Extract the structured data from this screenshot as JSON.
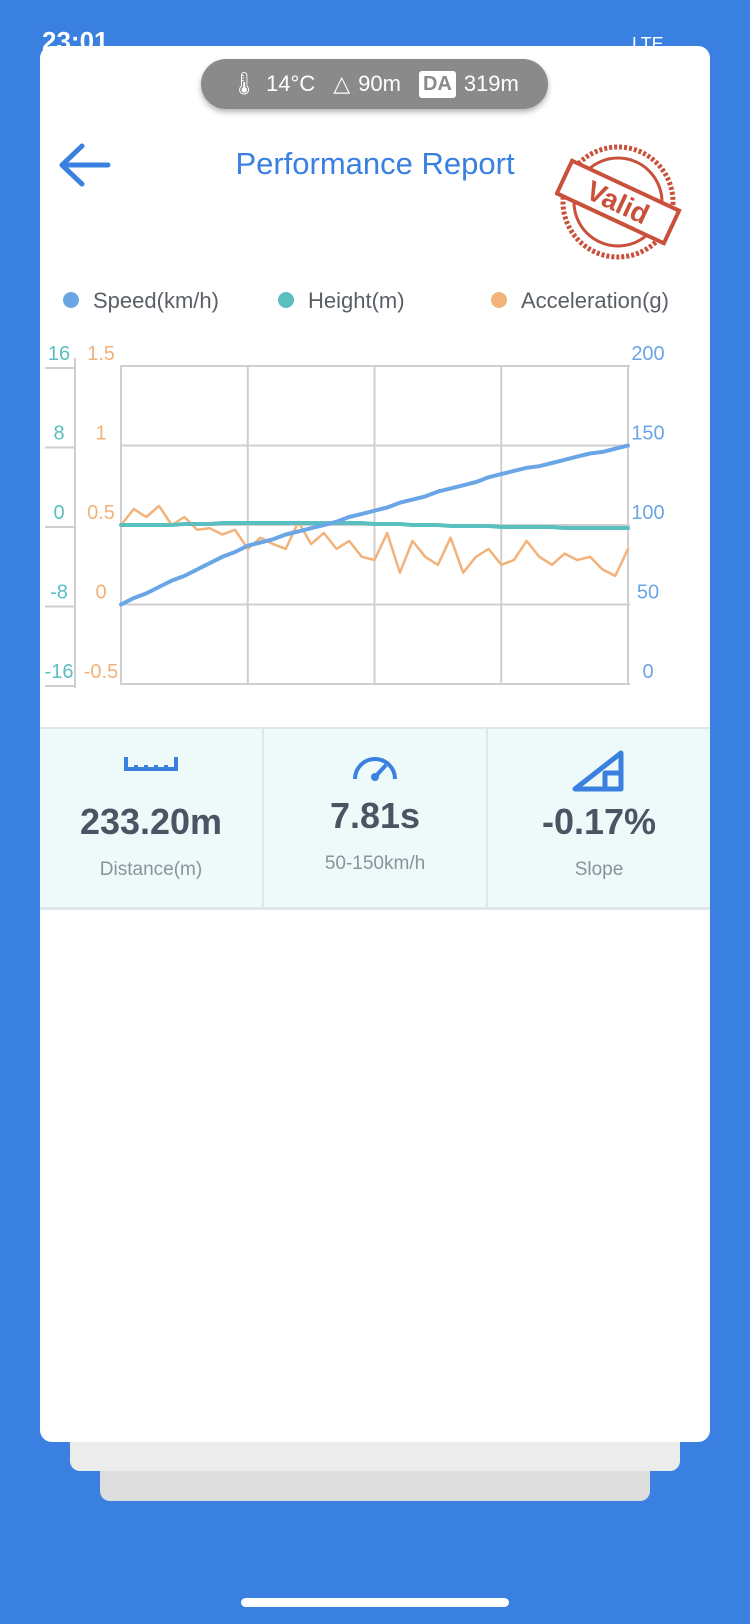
{
  "status_bar": {
    "time": "23:01",
    "network": "LTE"
  },
  "conditions": {
    "temperature": "14°C",
    "altitude": "90m",
    "da_label": "DA",
    "density_altitude": "319m"
  },
  "header": {
    "title": "Performance Report",
    "stamp": "Valid"
  },
  "chart_data": {
    "type": "line",
    "categories": [
      null,
      null,
      null,
      null,
      null,
      null,
      null,
      null,
      null,
      null,
      null,
      null,
      null,
      null,
      null,
      null,
      null,
      null,
      null,
      null,
      null,
      null,
      null,
      null,
      null,
      null,
      null,
      null,
      null,
      null,
      null,
      null,
      null,
      null,
      null,
      null,
      null,
      null,
      null,
      null,
      null
    ],
    "series": [
      {
        "name": "Speed(km/h)",
        "color": "#6aa6e6",
        "axis": "y2",
        "values": [
          50,
          54,
          57,
          61,
          65,
          68,
          72,
          76,
          80,
          83,
          87,
          89,
          91,
          94,
          96,
          98,
          100,
          102,
          105,
          107,
          109,
          111,
          114,
          116,
          118,
          121,
          123,
          125,
          127,
          130,
          132,
          134,
          136,
          137,
          139,
          141,
          143,
          145,
          146,
          148,
          150
        ]
      },
      {
        "name": "Height(m)",
        "color": "#5bbfc0",
        "axis": "y",
        "values": [
          0,
          0,
          0,
          0,
          0,
          0.1,
          0.1,
          0.1,
          0.2,
          0.2,
          0.2,
          0.2,
          0.2,
          0.2,
          0.2,
          0.2,
          0.2,
          0.2,
          0.2,
          0.2,
          0.1,
          0.1,
          0.1,
          0,
          0,
          0,
          -0.1,
          -0.1,
          -0.1,
          -0.1,
          -0.2,
          -0.2,
          -0.2,
          -0.2,
          -0.2,
          -0.3,
          -0.3,
          -0.3,
          -0.3,
          -0.3,
          -0.3
        ]
      },
      {
        "name": "Acceleration(g)",
        "color": "#f2b27a",
        "axis": "y3",
        "values": [
          0.5,
          0.6,
          0.55,
          0.62,
          0.5,
          0.55,
          0.47,
          0.48,
          0.44,
          0.47,
          0.35,
          0.42,
          0.38,
          0.35,
          0.52,
          0.38,
          0.45,
          0.35,
          0.4,
          0.3,
          0.28,
          0.45,
          0.2,
          0.4,
          0.3,
          0.25,
          0.42,
          0.2,
          0.3,
          0.35,
          0.25,
          0.28,
          0.4,
          0.3,
          0.25,
          0.32,
          0.28,
          0.3,
          0.22,
          0.18,
          0.35
        ]
      }
    ],
    "ylim": [
      -16,
      16
    ],
    "yticks": [
      16,
      8,
      0,
      -8,
      -16
    ],
    "y3lim": [
      -0.5,
      1.5
    ],
    "y3ticks": [
      1.5,
      1,
      0.5,
      0,
      -0.5
    ],
    "y2lim": [
      0,
      200
    ],
    "y2ticks": [
      200,
      150,
      100,
      50,
      0
    ],
    "grid": true,
    "legend": "top"
  },
  "stats": [
    {
      "value": "233.20m",
      "label": "Distance(m)"
    },
    {
      "value": "7.81s",
      "label": "50-150km/h"
    },
    {
      "value": "-0.17%",
      "label": "Slope"
    }
  ]
}
